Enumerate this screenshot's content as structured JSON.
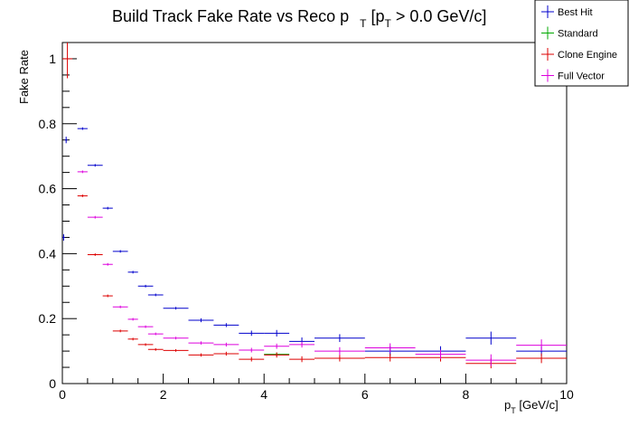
{
  "chart_data": {
    "type": "scatter",
    "title": {
      "main": "Build Track Fake Rate vs Reco p",
      "sub1": "T",
      "mid": " [p",
      "sub2": "T",
      "tail": " > 0.0 GeV/c]"
    },
    "xlabel": {
      "main": "p",
      "sub": "T",
      "tail": " [GeV/c]"
    },
    "ylabel": "Fake Rate",
    "xlim": [
      0,
      10
    ],
    "ylim": [
      0,
      1.05
    ],
    "x_ticks": [
      0,
      2,
      4,
      6,
      8,
      10
    ],
    "y_ticks": [
      0,
      0.2,
      0.4,
      0.6,
      0.8,
      1
    ],
    "x_tick_labels": [
      "0",
      "2",
      "4",
      "6",
      "8",
      "10"
    ],
    "y_tick_labels": [
      "0",
      "0.2",
      "0.4",
      "0.6",
      "0.8",
      "1"
    ],
    "grid": false,
    "legend_placement": "top-right",
    "series": [
      {
        "name": "Best Hit",
        "color": "#0000cc",
        "points": [
          {
            "x": 0.025,
            "xerr": 0.025,
            "y": 0.45,
            "yerr": 0.01
          },
          {
            "x": 0.075,
            "xerr": 0.025,
            "y": 0.75,
            "yerr": 0.01
          },
          {
            "x": 0.4,
            "xerr": 0.1,
            "y": 0.785,
            "yerr": 0.004
          },
          {
            "x": 0.65,
            "xerr": 0.15,
            "y": 0.672,
            "yerr": 0.004
          },
          {
            "x": 0.9,
            "xerr": 0.1,
            "y": 0.54,
            "yerr": 0.004
          },
          {
            "x": 1.15,
            "xerr": 0.15,
            "y": 0.407,
            "yerr": 0.004
          },
          {
            "x": 1.4,
            "xerr": 0.1,
            "y": 0.343,
            "yerr": 0.004
          },
          {
            "x": 1.65,
            "xerr": 0.15,
            "y": 0.3,
            "yerr": 0.004
          },
          {
            "x": 1.85,
            "xerr": 0.15,
            "y": 0.273,
            "yerr": 0.004
          },
          {
            "x": 2.25,
            "xerr": 0.25,
            "y": 0.232,
            "yerr": 0.004
          },
          {
            "x": 2.75,
            "xerr": 0.25,
            "y": 0.195,
            "yerr": 0.006
          },
          {
            "x": 3.25,
            "xerr": 0.25,
            "y": 0.18,
            "yerr": 0.006
          },
          {
            "x": 3.75,
            "xerr": 0.25,
            "y": 0.155,
            "yerr": 0.008
          },
          {
            "x": 4.25,
            "xerr": 0.25,
            "y": 0.155,
            "yerr": 0.01
          },
          {
            "x": 4.75,
            "xerr": 0.25,
            "y": 0.13,
            "yerr": 0.012
          },
          {
            "x": 5.5,
            "xerr": 0.5,
            "y": 0.14,
            "yerr": 0.012
          },
          {
            "x": 6.5,
            "xerr": 0.5,
            "y": 0.1,
            "yerr": 0.015
          },
          {
            "x": 7.5,
            "xerr": 0.5,
            "y": 0.1,
            "yerr": 0.015
          },
          {
            "x": 8.5,
            "xerr": 0.5,
            "y": 0.14,
            "yerr": 0.02
          },
          {
            "x": 9.5,
            "xerr": 0.5,
            "y": 0.1,
            "yerr": 0.015
          }
        ]
      },
      {
        "name": "Standard",
        "color": "#00aa00",
        "points": [
          {
            "x": 4.25,
            "xerr": 0.25,
            "y": 0.09,
            "yerr": 0.006
          }
        ]
      },
      {
        "name": "Clone Engine",
        "color": "#dd0000",
        "points": [
          {
            "x": 0.1,
            "xerr": 0.1,
            "y": 1.0,
            "yerr": 0.06
          },
          {
            "x": 0.4,
            "xerr": 0.1,
            "y": 0.578,
            "yerr": 0.004
          },
          {
            "x": 0.65,
            "xerr": 0.15,
            "y": 0.397,
            "yerr": 0.004
          },
          {
            "x": 0.9,
            "xerr": 0.1,
            "y": 0.27,
            "yerr": 0.004
          },
          {
            "x": 1.15,
            "xerr": 0.15,
            "y": 0.162,
            "yerr": 0.004
          },
          {
            "x": 1.4,
            "xerr": 0.1,
            "y": 0.137,
            "yerr": 0.004
          },
          {
            "x": 1.65,
            "xerr": 0.15,
            "y": 0.12,
            "yerr": 0.004
          },
          {
            "x": 1.85,
            "xerr": 0.15,
            "y": 0.105,
            "yerr": 0.004
          },
          {
            "x": 2.25,
            "xerr": 0.25,
            "y": 0.102,
            "yerr": 0.004
          },
          {
            "x": 2.75,
            "xerr": 0.25,
            "y": 0.088,
            "yerr": 0.005
          },
          {
            "x": 3.25,
            "xerr": 0.25,
            "y": 0.092,
            "yerr": 0.006
          },
          {
            "x": 3.75,
            "xerr": 0.25,
            "y": 0.075,
            "yerr": 0.007
          },
          {
            "x": 4.25,
            "xerr": 0.25,
            "y": 0.088,
            "yerr": 0.008
          },
          {
            "x": 4.75,
            "xerr": 0.25,
            "y": 0.075,
            "yerr": 0.009
          },
          {
            "x": 5.5,
            "xerr": 0.5,
            "y": 0.078,
            "yerr": 0.01
          },
          {
            "x": 6.5,
            "xerr": 0.5,
            "y": 0.08,
            "yerr": 0.012
          },
          {
            "x": 7.5,
            "xerr": 0.5,
            "y": 0.08,
            "yerr": 0.012
          },
          {
            "x": 8.5,
            "xerr": 0.5,
            "y": 0.062,
            "yerr": 0.015
          },
          {
            "x": 9.5,
            "xerr": 0.5,
            "y": 0.078,
            "yerr": 0.015
          }
        ]
      },
      {
        "name": "Full Vector",
        "color": "#dd00dd",
        "points": [
          {
            "x": 0.4,
            "xerr": 0.1,
            "y": 0.652,
            "yerr": 0.004
          },
          {
            "x": 0.65,
            "xerr": 0.15,
            "y": 0.512,
            "yerr": 0.004
          },
          {
            "x": 0.9,
            "xerr": 0.1,
            "y": 0.367,
            "yerr": 0.004
          },
          {
            "x": 1.15,
            "xerr": 0.15,
            "y": 0.236,
            "yerr": 0.004
          },
          {
            "x": 1.4,
            "xerr": 0.1,
            "y": 0.198,
            "yerr": 0.004
          },
          {
            "x": 1.65,
            "xerr": 0.15,
            "y": 0.175,
            "yerr": 0.004
          },
          {
            "x": 1.85,
            "xerr": 0.15,
            "y": 0.153,
            "yerr": 0.004
          },
          {
            "x": 2.25,
            "xerr": 0.25,
            "y": 0.14,
            "yerr": 0.004
          },
          {
            "x": 2.75,
            "xerr": 0.25,
            "y": 0.125,
            "yerr": 0.005
          },
          {
            "x": 3.25,
            "xerr": 0.25,
            "y": 0.12,
            "yerr": 0.006
          },
          {
            "x": 3.75,
            "xerr": 0.25,
            "y": 0.103,
            "yerr": 0.007
          },
          {
            "x": 4.25,
            "xerr": 0.25,
            "y": 0.115,
            "yerr": 0.008
          },
          {
            "x": 4.75,
            "xerr": 0.25,
            "y": 0.12,
            "yerr": 0.009
          },
          {
            "x": 5.5,
            "xerr": 0.5,
            "y": 0.1,
            "yerr": 0.012
          },
          {
            "x": 6.5,
            "xerr": 0.5,
            "y": 0.11,
            "yerr": 0.014
          },
          {
            "x": 7.5,
            "xerr": 0.5,
            "y": 0.09,
            "yerr": 0.014
          },
          {
            "x": 8.5,
            "xerr": 0.5,
            "y": 0.072,
            "yerr": 0.018
          },
          {
            "x": 9.5,
            "xerr": 0.5,
            "y": 0.118,
            "yerr": 0.018
          }
        ]
      }
    ]
  }
}
